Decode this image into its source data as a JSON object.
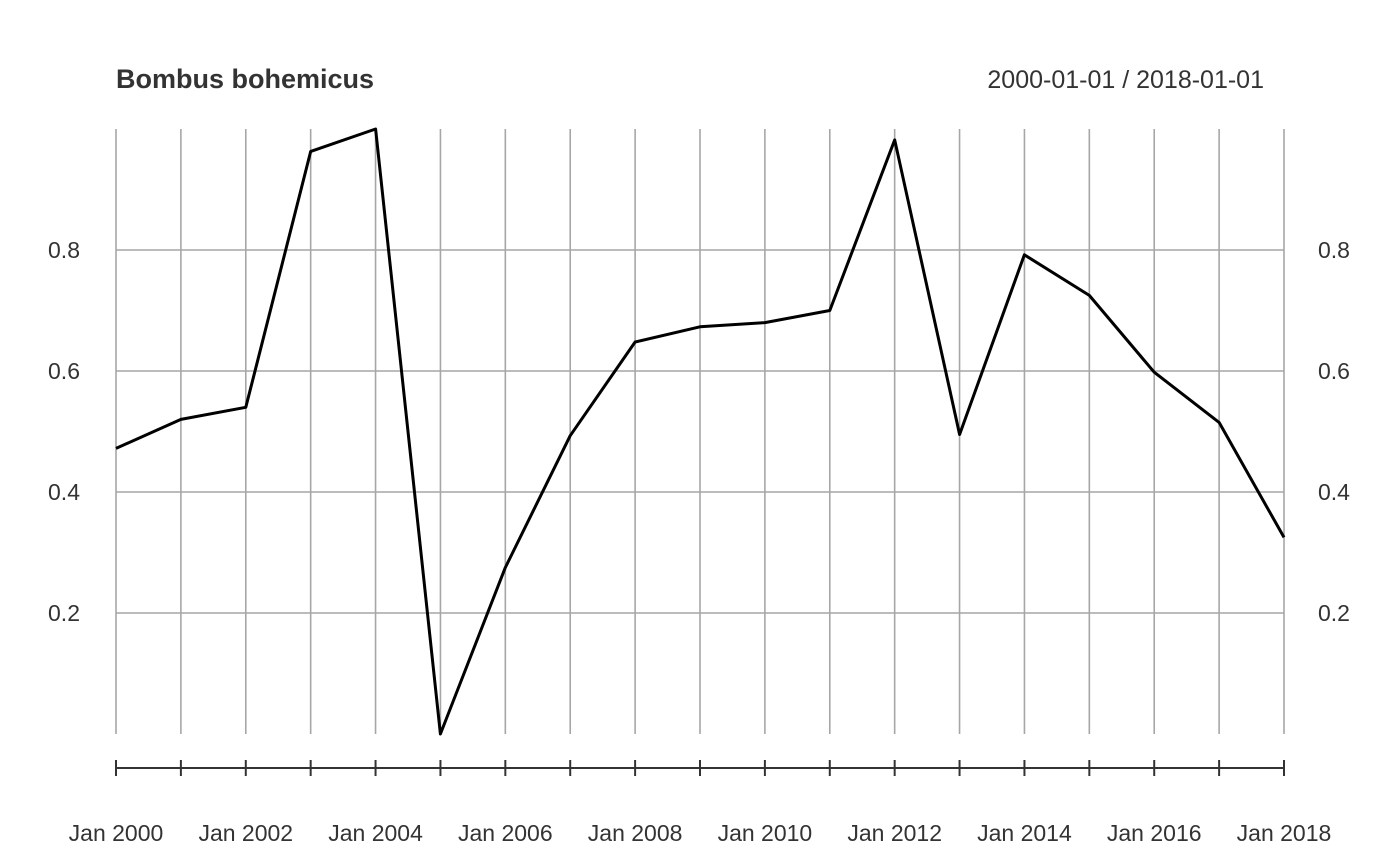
{
  "chart_data": {
    "type": "line",
    "title": "Bombus bohemicus",
    "subtitle": "2000-01-01 / 2018-01-01",
    "xlabel": "",
    "ylabel": "",
    "x": [
      "2000-01-01",
      "2001-01-01",
      "2002-01-01",
      "2003-01-01",
      "2004-01-01",
      "2005-01-01",
      "2006-01-01",
      "2007-01-01",
      "2008-01-01",
      "2009-01-01",
      "2010-01-01",
      "2011-01-01",
      "2012-01-01",
      "2013-01-01",
      "2014-01-01",
      "2015-01-01",
      "2016-01-01",
      "2017-01-01",
      "2018-01-01"
    ],
    "x_tick_labels": [
      "Jan 2000",
      "Jan 2002",
      "Jan 2004",
      "Jan 2006",
      "Jan 2008",
      "Jan 2010",
      "Jan 2012",
      "Jan 2014",
      "Jan 2016",
      "Jan 2018"
    ],
    "y_ticks": [
      "0.2",
      "0.4",
      "0.6",
      "0.8"
    ],
    "y_tick_values": [
      0.2,
      0.4,
      0.6,
      0.8
    ],
    "ylim": [
      0,
      1
    ],
    "grid": true,
    "series": [
      {
        "values": [
          0.472,
          0.52,
          0.54,
          0.963,
          1.0,
          0.0,
          0.275,
          0.493,
          0.648,
          0.673,
          0.68,
          0.7,
          0.982,
          0.495,
          0.792,
          0.725,
          0.598,
          0.515,
          0.325
        ]
      }
    ],
    "colors": {
      "line": "#000000",
      "grid": "#a6a6a6",
      "text": "#333333"
    }
  }
}
